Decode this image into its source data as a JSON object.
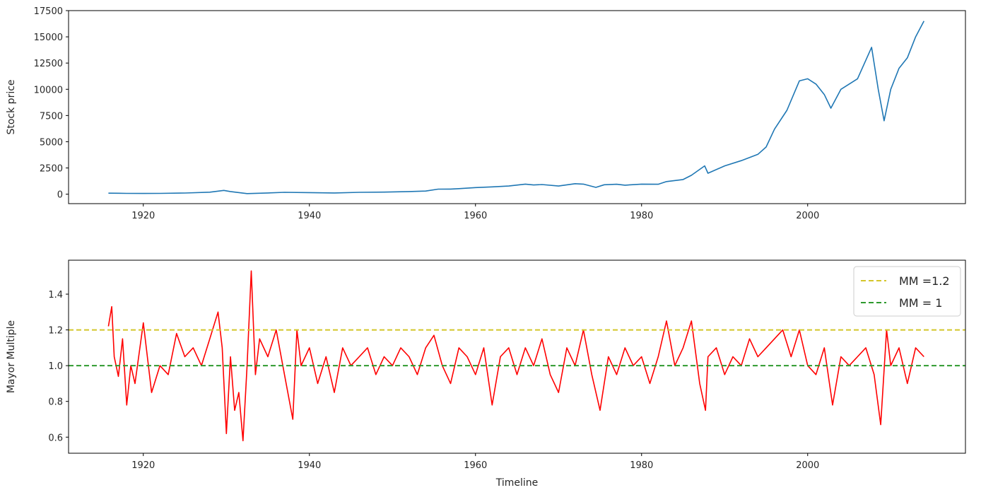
{
  "chart_data": [
    {
      "type": "line",
      "ylabel": "Stock price",
      "xlabel": "",
      "xlim": [
        1911,
        2019
      ],
      "ylim": [
        -900,
        17500
      ],
      "xticks": [
        "1920",
        "1940",
        "1960",
        "1980",
        "2000"
      ],
      "yticks": [
        "0",
        "2500",
        "5000",
        "7500",
        "10000",
        "12500",
        "15000",
        "17500"
      ],
      "grid": false,
      "series": [
        {
          "color": "#1f77b4",
          "x": [
            1915.8,
            1917,
            1918,
            1920,
            1922,
            1925,
            1928,
            1929.7,
            1930.5,
            1932.5,
            1935,
            1937,
            1940,
            1943,
            1946,
            1949,
            1952,
            1954,
            1955.5,
            1957,
            1958,
            1960,
            1962,
            1964,
            1966,
            1967,
            1968,
            1970,
            1972,
            1973,
            1974.5,
            1975.5,
            1977,
            1978,
            1980,
            1982,
            1983,
            1985,
            1986,
            1987.6,
            1988,
            1990,
            1992,
            1994,
            1995,
            1996,
            1997.5,
            1999,
            2000,
            2001,
            2002,
            2002.8,
            2004,
            2006,
            2007.7,
            2008.5,
            2009.2,
            2010,
            2011,
            2012,
            2013,
            2014
          ],
          "y": [
            100,
            90,
            80,
            70,
            80,
            110,
            190,
            360,
            250,
            60,
            120,
            180,
            150,
            120,
            180,
            200,
            250,
            300,
            480,
            490,
            530,
            630,
            700,
            780,
            960,
            880,
            920,
            780,
            1000,
            960,
            650,
            900,
            950,
            860,
            960,
            950,
            1200,
            1400,
            1800,
            2700,
            2000,
            2700,
            3200,
            3800,
            4500,
            6200,
            8000,
            10800,
            11000,
            10500,
            9500,
            8200,
            10000,
            11000,
            14000,
            10000,
            7000,
            10000,
            12000,
            13000,
            15000,
            16500
          ]
        }
      ]
    },
    {
      "type": "line",
      "ylabel": "Mayor Multiple",
      "xlabel": "Timeline",
      "xlim": [
        1911,
        2019
      ],
      "ylim": [
        0.51,
        1.59
      ],
      "xticks": [
        "1920",
        "1940",
        "1960",
        "1980",
        "2000"
      ],
      "yticks": [
        "0.6",
        "0.8",
        "1.0",
        "1.2",
        "1.4"
      ],
      "grid": false,
      "legend": "top-right",
      "hlines": [
        {
          "name": "MM =1.2",
          "y": 1.2,
          "color": "#d4c62a",
          "style": "dashed"
        },
        {
          "name": "MM = 1",
          "y": 1.0,
          "color": "#2e9a2e",
          "style": "dashed"
        }
      ],
      "series": [
        {
          "color": "#ff0000",
          "x": [
            1915.8,
            1916.2,
            1916.5,
            1917,
            1917.5,
            1918,
            1918.5,
            1919,
            1920,
            1921,
            1922,
            1923,
            1924,
            1925,
            1926,
            1927,
            1928,
            1929,
            1929.5,
            1930,
            1930.5,
            1931,
            1931.5,
            1932,
            1932.5,
            1933,
            1933.5,
            1934,
            1935,
            1936,
            1937,
            1938,
            1938.5,
            1939,
            1940,
            1941,
            1942,
            1943,
            1944,
            1945,
            1946,
            1947,
            1948,
            1949,
            1950,
            1951,
            1952,
            1953,
            1954,
            1955,
            1956,
            1957,
            1958,
            1959,
            1960,
            1961,
            1962,
            1963,
            1964,
            1965,
            1966,
            1967,
            1968,
            1969,
            1970,
            1971,
            1972,
            1973,
            1974,
            1975,
            1976,
            1977,
            1978,
            1979,
            1980,
            1981,
            1982,
            1983,
            1984,
            1985,
            1986,
            1987,
            1987.7,
            1988,
            1989,
            1990,
            1991,
            1992,
            1993,
            1994,
            1995,
            1996,
            1997,
            1998,
            1999,
            2000,
            2001,
            2002,
            2003,
            2004,
            2005,
            2006,
            2007,
            2008,
            2008.8,
            2009.5,
            2010,
            2011,
            2012,
            2013,
            2014
          ],
          "y": [
            1.22,
            1.33,
            1.05,
            0.94,
            1.15,
            0.78,
            1.0,
            0.9,
            1.24,
            0.85,
            1.0,
            0.95,
            1.18,
            1.05,
            1.1,
            1.0,
            1.15,
            1.3,
            1.1,
            0.62,
            1.05,
            0.75,
            0.85,
            0.58,
            1.0,
            1.53,
            0.95,
            1.15,
            1.05,
            1.2,
            0.95,
            0.7,
            1.2,
            1.0,
            1.1,
            0.9,
            1.05,
            0.85,
            1.1,
            1.0,
            1.05,
            1.1,
            0.95,
            1.05,
            1.0,
            1.1,
            1.05,
            0.95,
            1.1,
            1.17,
            1.0,
            0.9,
            1.1,
            1.05,
            0.95,
            1.1,
            0.78,
            1.05,
            1.1,
            0.95,
            1.1,
            1.0,
            1.15,
            0.95,
            0.85,
            1.1,
            1.0,
            1.2,
            0.95,
            0.75,
            1.05,
            0.95,
            1.1,
            1.0,
            1.05,
            0.9,
            1.05,
            1.25,
            1.0,
            1.1,
            1.25,
            0.9,
            0.75,
            1.05,
            1.1,
            0.95,
            1.05,
            1.0,
            1.15,
            1.05,
            1.1,
            1.15,
            1.2,
            1.05,
            1.2,
            1.0,
            0.95,
            1.1,
            0.78,
            1.05,
            1.0,
            1.05,
            1.1,
            0.95,
            0.67,
            1.2,
            1.0,
            1.1,
            0.9,
            1.1,
            1.05
          ]
        }
      ]
    }
  ]
}
